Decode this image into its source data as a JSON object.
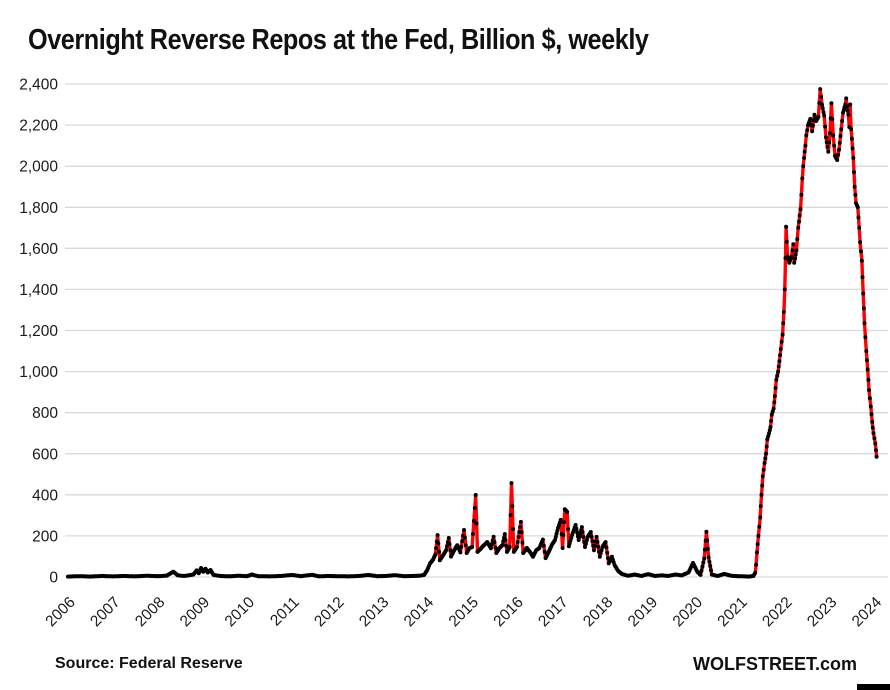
{
  "title": "Overnight Reverse Repos at the Fed, Billion $, weekly",
  "footer": {
    "source_note": "Source: Federal Reserve",
    "brand": "WOLFSTREET.com"
  },
  "colors": {
    "line": "#FF0000",
    "marker": "#000000",
    "grid": "#D9D9D9",
    "axis_text": "#1A1A1A"
  },
  "chart_data": {
    "type": "line",
    "title": "Overnight Reverse Repos at the Fed, Billion $, weekly",
    "xlabel": "",
    "ylabel": "Billion $",
    "x_unit": "decimal_year",
    "y_unit": "billion_dollars",
    "xlim": [
      2005.9,
      2024.45
    ],
    "ylim": [
      0,
      2400
    ],
    "x_ticks": [
      2006,
      2007,
      2008,
      2009,
      2010,
      2011,
      2012,
      2013,
      2014,
      2015,
      2016,
      2017,
      2018,
      2019,
      2020,
      2021,
      2022,
      2023,
      2024
    ],
    "y_ticks": [
      0,
      200,
      400,
      600,
      800,
      1000,
      1200,
      1400,
      1600,
      1800,
      2000,
      2200,
      2400
    ],
    "grid": "horizontal",
    "legend_position": "none",
    "marker_style": "black dot at each weekly observation",
    "series": [
      {
        "name": "Overnight reverse repo balances, weekly ($ billion)",
        "points": [
          [
            2006.0,
            2
          ],
          [
            2006.25,
            4
          ],
          [
            2006.5,
            2
          ],
          [
            2006.75,
            5
          ],
          [
            2007.0,
            3
          ],
          [
            2007.25,
            5
          ],
          [
            2007.5,
            3
          ],
          [
            2007.75,
            6
          ],
          [
            2008.0,
            4
          ],
          [
            2008.2,
            6
          ],
          [
            2008.35,
            26
          ],
          [
            2008.45,
            8
          ],
          [
            2008.6,
            5
          ],
          [
            2008.8,
            12
          ],
          [
            2008.87,
            32
          ],
          [
            2008.92,
            18
          ],
          [
            2008.97,
            44
          ],
          [
            2009.02,
            26
          ],
          [
            2009.07,
            40
          ],
          [
            2009.12,
            22
          ],
          [
            2009.18,
            34
          ],
          [
            2009.25,
            10
          ],
          [
            2009.4,
            5
          ],
          [
            2009.6,
            3
          ],
          [
            2009.8,
            6
          ],
          [
            2010.0,
            4
          ],
          [
            2010.1,
            12
          ],
          [
            2010.25,
            4
          ],
          [
            2010.5,
            3
          ],
          [
            2010.75,
            5
          ],
          [
            2011.0,
            10
          ],
          [
            2011.2,
            4
          ],
          [
            2011.45,
            11
          ],
          [
            2011.6,
            3
          ],
          [
            2011.8,
            5
          ],
          [
            2012.0,
            4
          ],
          [
            2012.25,
            3
          ],
          [
            2012.5,
            5
          ],
          [
            2012.7,
            10
          ],
          [
            2012.9,
            4
          ],
          [
            2013.1,
            5
          ],
          [
            2013.3,
            9
          ],
          [
            2013.5,
            4
          ],
          [
            2013.7,
            5
          ],
          [
            2013.85,
            6
          ],
          [
            2013.95,
            10
          ],
          [
            2014.02,
            34
          ],
          [
            2014.08,
            66
          ],
          [
            2014.15,
            85
          ],
          [
            2014.2,
            110
          ],
          [
            2014.25,
            204
          ],
          [
            2014.3,
            82
          ],
          [
            2014.37,
            105
          ],
          [
            2014.44,
            130
          ],
          [
            2014.5,
            190
          ],
          [
            2014.55,
            100
          ],
          [
            2014.62,
            130
          ],
          [
            2014.69,
            155
          ],
          [
            2014.76,
            120
          ],
          [
            2014.84,
            229
          ],
          [
            2014.9,
            117
          ],
          [
            2014.96,
            140
          ],
          [
            2015.02,
            146
          ],
          [
            2015.1,
            399
          ],
          [
            2015.14,
            122
          ],
          [
            2015.22,
            140
          ],
          [
            2015.29,
            156
          ],
          [
            2015.36,
            170
          ],
          [
            2015.44,
            140
          ],
          [
            2015.5,
            196
          ],
          [
            2015.56,
            117
          ],
          [
            2015.63,
            140
          ],
          [
            2015.7,
            156
          ],
          [
            2015.75,
            209
          ],
          [
            2015.8,
            122
          ],
          [
            2015.86,
            146
          ],
          [
            2015.9,
            457
          ],
          [
            2015.95,
            122
          ],
          [
            2016.02,
            146
          ],
          [
            2016.11,
            268
          ],
          [
            2016.16,
            117
          ],
          [
            2016.24,
            141
          ],
          [
            2016.31,
            122
          ],
          [
            2016.38,
            99
          ],
          [
            2016.45,
            130
          ],
          [
            2016.52,
            141
          ],
          [
            2016.6,
            182
          ],
          [
            2016.66,
            92
          ],
          [
            2016.73,
            122
          ],
          [
            2016.8,
            156
          ],
          [
            2016.87,
            180
          ],
          [
            2016.94,
            240
          ],
          [
            2017.0,
            278
          ],
          [
            2017.04,
            141
          ],
          [
            2017.09,
            330
          ],
          [
            2017.14,
            317
          ],
          [
            2017.18,
            150
          ],
          [
            2017.25,
            204
          ],
          [
            2017.33,
            253
          ],
          [
            2017.4,
            180
          ],
          [
            2017.47,
            243
          ],
          [
            2017.54,
            146
          ],
          [
            2017.6,
            195
          ],
          [
            2017.67,
            219
          ],
          [
            2017.74,
            130
          ],
          [
            2017.8,
            195
          ],
          [
            2017.87,
            99
          ],
          [
            2017.93,
            146
          ],
          [
            2018.0,
            170
          ],
          [
            2018.07,
            66
          ],
          [
            2018.14,
            99
          ],
          [
            2018.2,
            58
          ],
          [
            2018.28,
            30
          ],
          [
            2018.36,
            15
          ],
          [
            2018.5,
            6
          ],
          [
            2018.65,
            12
          ],
          [
            2018.8,
            5
          ],
          [
            2018.95,
            14
          ],
          [
            2019.1,
            5
          ],
          [
            2019.25,
            8
          ],
          [
            2019.4,
            5
          ],
          [
            2019.55,
            12
          ],
          [
            2019.7,
            8
          ],
          [
            2019.85,
            22
          ],
          [
            2019.95,
            68
          ],
          [
            2020.05,
            25
          ],
          [
            2020.12,
            10
          ],
          [
            2020.2,
            90
          ],
          [
            2020.25,
            220
          ],
          [
            2020.3,
            95
          ],
          [
            2020.37,
            12
          ],
          [
            2020.5,
            5
          ],
          [
            2020.65,
            15
          ],
          [
            2020.8,
            6
          ],
          [
            2020.95,
            4
          ],
          [
            2021.1,
            3
          ],
          [
            2021.2,
            2
          ],
          [
            2021.3,
            5
          ],
          [
            2021.34,
            20
          ],
          [
            2021.36,
            60
          ],
          [
            2021.38,
            120
          ],
          [
            2021.41,
            200
          ],
          [
            2021.45,
            290
          ],
          [
            2021.48,
            400
          ],
          [
            2021.51,
            490
          ],
          [
            2021.55,
            555
          ],
          [
            2021.58,
            600
          ],
          [
            2021.61,
            670
          ],
          [
            2021.65,
            700
          ],
          [
            2021.68,
            730
          ],
          [
            2021.71,
            790
          ],
          [
            2021.75,
            820
          ],
          [
            2021.78,
            880
          ],
          [
            2021.81,
            960
          ],
          [
            2021.85,
            1000
          ],
          [
            2021.88,
            1050
          ],
          [
            2021.91,
            1110
          ],
          [
            2021.95,
            1180
          ],
          [
            2021.98,
            1290
          ],
          [
            2022.0,
            1400
          ],
          [
            2022.03,
            1705
          ],
          [
            2022.06,
            1560
          ],
          [
            2022.1,
            1530
          ],
          [
            2022.15,
            1560
          ],
          [
            2022.19,
            1620
          ],
          [
            2022.21,
            1530
          ],
          [
            2022.26,
            1590
          ],
          [
            2022.3,
            1700
          ],
          [
            2022.35,
            1790
          ],
          [
            2022.37,
            1860
          ],
          [
            2022.39,
            1940
          ],
          [
            2022.41,
            2000
          ],
          [
            2022.43,
            2040
          ],
          [
            2022.46,
            2100
          ],
          [
            2022.48,
            2150
          ],
          [
            2022.52,
            2200
          ],
          [
            2022.57,
            2230
          ],
          [
            2022.61,
            2170
          ],
          [
            2022.66,
            2250
          ],
          [
            2022.7,
            2220
          ],
          [
            2022.75,
            2240
          ],
          [
            2022.79,
            2375
          ],
          [
            2022.83,
            2300
          ],
          [
            2022.88,
            2245
          ],
          [
            2022.92,
            2140
          ],
          [
            2022.97,
            2070
          ],
          [
            2023.01,
            2160
          ],
          [
            2023.04,
            2306
          ],
          [
            2023.08,
            2150
          ],
          [
            2023.12,
            2050
          ],
          [
            2023.17,
            2030
          ],
          [
            2023.21,
            2080
          ],
          [
            2023.26,
            2180
          ],
          [
            2023.3,
            2260
          ],
          [
            2023.35,
            2300
          ],
          [
            2023.37,
            2330
          ],
          [
            2023.39,
            2290
          ],
          [
            2023.42,
            2250
          ],
          [
            2023.44,
            2190
          ],
          [
            2023.46,
            2300
          ],
          [
            2023.48,
            2180
          ],
          [
            2023.53,
            2040
          ],
          [
            2023.56,
            1900
          ],
          [
            2023.59,
            1820
          ],
          [
            2023.63,
            1800
          ],
          [
            2023.66,
            1700
          ],
          [
            2023.68,
            1630
          ],
          [
            2023.72,
            1540
          ],
          [
            2023.75,
            1380
          ],
          [
            2023.78,
            1235
          ],
          [
            2023.82,
            1100
          ],
          [
            2023.85,
            1010
          ],
          [
            2023.88,
            910
          ],
          [
            2023.92,
            830
          ],
          [
            2023.95,
            755
          ],
          [
            2023.98,
            700
          ],
          [
            2024.02,
            650
          ],
          [
            2024.05,
            585
          ]
        ]
      }
    ]
  }
}
